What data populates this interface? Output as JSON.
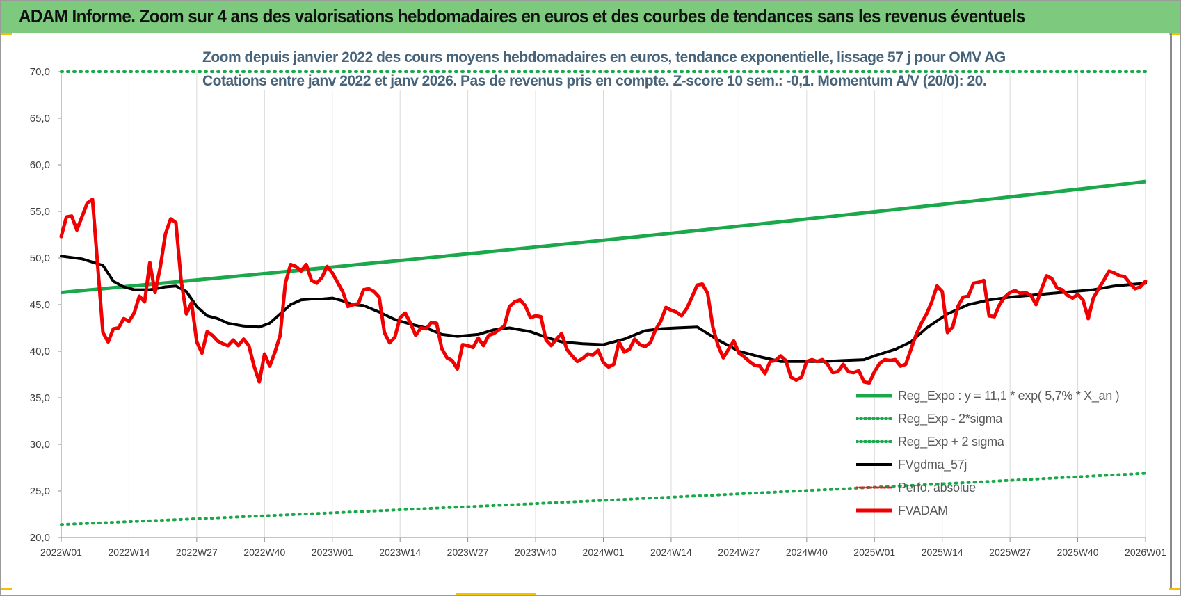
{
  "banner": {
    "title": "ADAM Informe. Zoom sur 4 ans des valorisations hebdomadaires en euros et des courbes de tendances sans les revenus éventuels"
  },
  "colors": {
    "banner": "#7dc97d",
    "accent": "#f2c200",
    "title_text": "#46637a",
    "reg_expo": "#1aa84a",
    "sigma_lines": "#1aa84a",
    "fvgdma": "#000000",
    "perfo": "#e0202a",
    "fvadam": "#f00000"
  },
  "chart_data": {
    "type": "line",
    "title": "Zoom depuis janvier 2022 des cours moyens hebdomadaires en euros, tendance exponentielle, lissage 57 j pour OMV AG",
    "subtitle": "Cotations entre janv 2022 et janv 2026. Pas de revenus pris en compte. Z-score 10 sem.: -0,1. Momentum A/V (20/0): 20.",
    "xlabel": "",
    "ylabel": "",
    "ylim": [
      20,
      70
    ],
    "yticks": [
      "20,0",
      "25,0",
      "30,0",
      "35,0",
      "40,0",
      "45,0",
      "50,0",
      "55,0",
      "60,0",
      "65,0",
      "70,0"
    ],
    "xticks": [
      "2022W01",
      "2022W14",
      "2022W27",
      "2022W40",
      "2023W01",
      "2023W14",
      "2023W27",
      "2023W40",
      "2024W01",
      "2024W14",
      "2024W27",
      "2024W40",
      "2025W01",
      "2025W14",
      "2025W27",
      "2025W40",
      "2026W01"
    ],
    "x_range_weeks": [
      0,
      208
    ],
    "grid": "vertical",
    "legend_position": "bottom-right",
    "series": [
      {
        "name": "Reg_Expo : y = 11,1 * exp( 5,7% *  X_an )",
        "style": "solid",
        "x": [
          0,
          208
        ],
        "y": [
          46.3,
          58.2
        ]
      },
      {
        "name": "Reg_Exp - 2*sigma",
        "style": "dotted",
        "x": [
          0,
          208
        ],
        "y": [
          21.4,
          26.9
        ]
      },
      {
        "name": "Reg_Exp + 2 sigma",
        "style": "dotted",
        "x": [
          0,
          208
        ],
        "y": [
          70.0,
          70.0
        ]
      },
      {
        "name": "FVgdma_57j",
        "style": "solid",
        "x": [
          0,
          4,
          8,
          10,
          12,
          14,
          17,
          20,
          22,
          24,
          26,
          28,
          30,
          32,
          35,
          38,
          40,
          42,
          44,
          46,
          48,
          50,
          52,
          54,
          56,
          58,
          61,
          64,
          67,
          70,
          73,
          76,
          80,
          83,
          86,
          90,
          93,
          96,
          100,
          104,
          108,
          112,
          115,
          118,
          122,
          126,
          130,
          134,
          138,
          142,
          146,
          150,
          154,
          156,
          160,
          163,
          166,
          170,
          174,
          178,
          182,
          186,
          190,
          194,
          198,
          202,
          206,
          208
        ],
        "y": [
          50.2,
          49.9,
          49.2,
          47.5,
          46.9,
          46.6,
          46.6,
          46.9,
          47.0,
          46.4,
          44.8,
          43.8,
          43.5,
          43.0,
          42.7,
          42.6,
          43.0,
          44.0,
          45.0,
          45.5,
          45.6,
          45.6,
          45.7,
          45.4,
          45.0,
          44.9,
          44.2,
          43.4,
          42.9,
          42.5,
          41.8,
          41.6,
          41.8,
          42.3,
          42.5,
          42.1,
          41.5,
          41.0,
          40.8,
          40.7,
          41.3,
          42.2,
          42.4,
          42.5,
          42.6,
          41.2,
          40.0,
          39.4,
          38.9,
          38.9,
          38.9,
          39.0,
          39.1,
          39.5,
          40.2,
          41.0,
          42.5,
          44.0,
          45.0,
          45.5,
          45.8,
          46.0,
          46.2,
          46.4,
          46.6,
          47.0,
          47.2,
          47.3
        ]
      },
      {
        "name": "Perfo. absolue",
        "style": "dotted",
        "x": [],
        "y": []
      },
      {
        "name": "FVADAM",
        "style": "solid",
        "x": [
          0,
          1,
          2,
          3,
          5,
          6,
          8,
          9,
          10,
          11,
          12,
          13,
          14,
          15,
          16,
          17,
          18,
          19,
          20,
          21,
          22,
          23,
          24,
          25,
          26,
          27,
          28,
          29,
          30,
          31,
          32,
          33,
          34,
          35,
          36,
          37,
          38,
          39,
          40,
          41,
          42,
          43,
          44,
          45,
          46,
          47,
          48,
          49,
          50,
          51,
          52,
          53,
          54,
          55,
          56,
          57,
          58,
          59,
          60,
          61,
          62,
          63,
          64,
          65,
          66,
          67,
          68,
          69,
          70,
          71,
          72,
          73,
          74,
          75,
          76,
          77,
          78,
          79,
          80,
          81,
          82,
          83,
          84,
          85,
          86,
          87,
          88,
          89,
          90,
          91,
          92,
          93,
          94,
          95,
          96,
          97,
          98,
          99,
          100,
          101,
          102,
          103,
          104,
          105,
          106,
          107,
          108,
          109,
          110,
          111,
          112,
          113,
          114,
          115,
          116,
          117,
          118,
          119,
          120,
          121,
          122,
          123,
          124,
          125,
          126,
          127,
          128,
          129,
          130,
          131,
          132,
          133,
          134,
          135,
          136,
          137,
          138,
          139,
          140,
          141,
          142,
          143,
          144,
          145,
          146,
          147,
          148,
          149,
          150,
          151,
          152,
          153,
          154,
          155,
          156,
          157,
          158,
          159,
          160,
          161,
          162,
          163,
          164,
          165,
          166,
          167,
          168,
          169,
          170,
          171,
          172,
          173,
          174,
          175,
          176,
          177,
          178,
          179,
          180,
          181,
          182,
          183,
          184,
          185,
          186,
          187,
          188,
          189,
          190,
          191,
          192,
          193,
          194,
          195,
          196,
          197,
          198,
          199,
          200,
          201,
          202,
          203,
          204,
          205,
          206,
          207,
          208
        ],
        "y": [
          52.3,
          54.4,
          54.5,
          53.0,
          55.9,
          56.3,
          42.0,
          41.0,
          42.4,
          42.5,
          43.5,
          43.2,
          44.1,
          45.9,
          45.3,
          49.5,
          46.3,
          49.0,
          52.6,
          54.2,
          53.8,
          47.6,
          44.0,
          45.2,
          41.0,
          39.8,
          42.1,
          41.7,
          41.1,
          40.8,
          40.6,
          41.2,
          40.6,
          41.3,
          40.6,
          38.4,
          36.7,
          39.7,
          38.4,
          39.9,
          41.7,
          47.3,
          49.3,
          49.1,
          48.6,
          49.3,
          47.6,
          47.3,
          47.9,
          49.1,
          48.4,
          47.4,
          46.4,
          44.8,
          45.0,
          45.1,
          46.6,
          46.7,
          46.4,
          45.8,
          42.0,
          40.9,
          41.5,
          43.6,
          44.1,
          43.0,
          41.7,
          42.5,
          42.4,
          43.1,
          43.0,
          40.3,
          39.3,
          39.0,
          38.1,
          40.7,
          40.6,
          40.4,
          41.4,
          40.6,
          41.7,
          41.9,
          42.3,
          42.7,
          44.8,
          45.3,
          45.5,
          44.9,
          43.6,
          43.8,
          43.7,
          41.2,
          40.6,
          41.3,
          41.9,
          40.2,
          39.5,
          38.9,
          39.2,
          39.7,
          39.6,
          40.1,
          38.8,
          38.3,
          38.6,
          41.0,
          39.9,
          40.2,
          41.3,
          40.7,
          40.5,
          40.9,
          42.3,
          43.2,
          44.7,
          44.4,
          44.2,
          43.8,
          44.6,
          45.8,
          47.1,
          47.2,
          46.2,
          42.6,
          40.6,
          39.3,
          40.2,
          41.1,
          39.8,
          39.4,
          38.9,
          38.5,
          38.4,
          37.6,
          38.9,
          39.0,
          39.5,
          39.0,
          37.2,
          36.9,
          37.2,
          38.9,
          39.1,
          38.9,
          39.1,
          38.6,
          37.7,
          37.8,
          38.6,
          37.8,
          37.7,
          37.9,
          36.7,
          36.6,
          37.8,
          38.7,
          39.1,
          39.0,
          39.1,
          38.4,
          38.6,
          40.2,
          41.8,
          43.0,
          44.0,
          45.3,
          47.0,
          46.4,
          42.0,
          42.6,
          44.8,
          45.8,
          45.9,
          47.3,
          47.4,
          47.6,
          43.8,
          43.7,
          45.0,
          45.8,
          46.3,
          46.5,
          46.2,
          46.3,
          46.0,
          45.0,
          46.6,
          48.1,
          47.8,
          46.8,
          46.6,
          46.0,
          45.7,
          46.1,
          45.5,
          43.5,
          45.7,
          46.7,
          47.6,
          48.6,
          48.4,
          48.1,
          48.0,
          47.3,
          46.7,
          46.9,
          47.5
        ]
      }
    ]
  }
}
